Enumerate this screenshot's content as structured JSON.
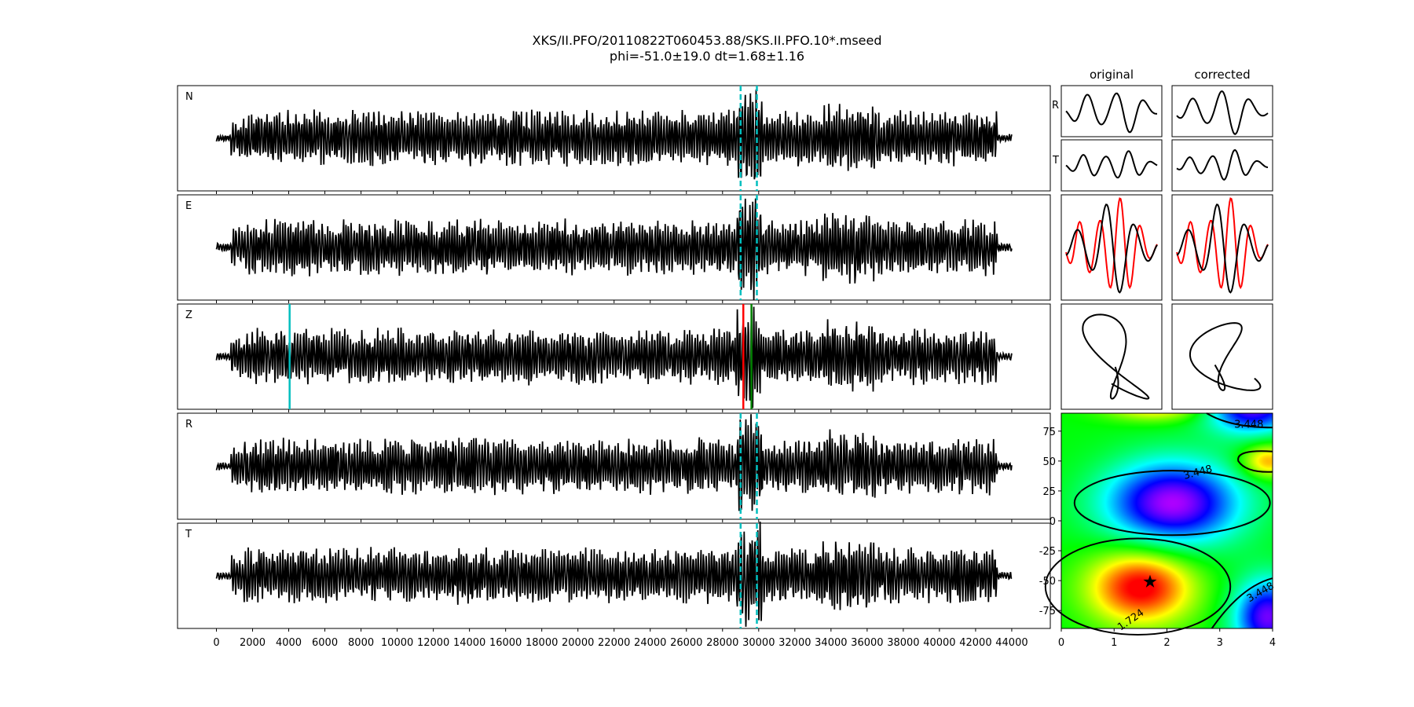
{
  "title": {
    "line1": "XKS/II.PFO/20110822T060453.88/SKS.II.PFO.10*.mseed",
    "line2": "phi=-51.0±19.0 dt=1.68±1.16"
  },
  "colors": {
    "trace": "#000000",
    "window": "#00bfbf",
    "pick_red": "#ff0000",
    "pick_green": "#008000"
  },
  "chart_data": [
    {
      "type": "line",
      "title": "",
      "channels": [
        "N",
        "E",
        "Z",
        "R",
        "T"
      ],
      "xlim": [
        -2000,
        45500
      ],
      "xticks": [
        "0",
        "2000",
        "4000",
        "6000",
        "8000",
        "10000",
        "12000",
        "14000",
        "16000",
        "18000",
        "20000",
        "22000",
        "24000",
        "26000",
        "28000",
        "30000",
        "32000",
        "34000",
        "36000",
        "38000",
        "40000",
        "42000",
        "44000"
      ],
      "trace_x_range": [
        0,
        44000
      ],
      "window_lines": [
        29000,
        29900
      ],
      "z_picks": [
        {
          "x": 4050,
          "color": "cyan"
        },
        {
          "x": 29150,
          "color": "red"
        },
        {
          "x": 29600,
          "color": "green"
        }
      ]
    },
    {
      "type": "line",
      "subplots": {
        "columns": [
          "original",
          "corrected"
        ],
        "rows": [
          "R",
          "T",
          "E-N overlay",
          "particle motion"
        ]
      }
    },
    {
      "type": "heatmap",
      "xlim": [
        0,
        4
      ],
      "ylim": [
        -90,
        90
      ],
      "xticks": [
        "0",
        "1",
        "2",
        "3",
        "4"
      ],
      "yticks": [
        "75",
        "50",
        "25",
        "0",
        "-25",
        "-50",
        "-75"
      ],
      "contour_labels": [
        "3.448",
        "3.448",
        "3.448",
        "1.724"
      ],
      "best_point": {
        "dt": 1.68,
        "phi": -51.0
      }
    }
  ]
}
